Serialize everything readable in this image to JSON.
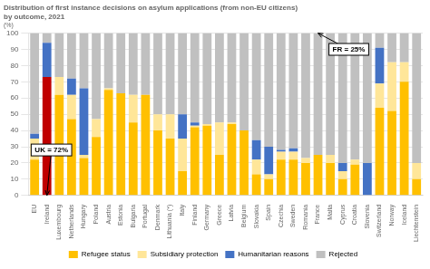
{
  "chart_data": {
    "type": "bar",
    "title": [
      "Distribution of first instance decisions on asylum applications (from non-EU citizens)",
      "by outcome, 2021"
    ],
    "subtitle": "(%)",
    "categories": [
      "EU",
      "Ireland",
      "Luxembourg",
      "Netherlands",
      "Hungary",
      "Poland",
      "Austria",
      "Estonia",
      "Bulgaria",
      "Portugal",
      "Denmark",
      "Lithuania (*)",
      "Italy",
      "Finland",
      "Germany",
      "Greece",
      "Latvia",
      "Belgium",
      "Slovakia",
      "Spain",
      "Czechia",
      "Sweden",
      "Romania",
      "France",
      "Malta",
      "Cyprus",
      "Croatia",
      "Slovenia",
      "Switzerland",
      "Norway",
      "Iceland",
      "Liechtenstein"
    ],
    "series": [
      {
        "name": "Refugee status",
        "color": "#FFC000",
        "colors": [
          "#FFC000",
          "#C00000",
          "#FFC000",
          "#FFC000",
          "#FFC000",
          "#FFC000",
          "#FFC000",
          "#FFC000",
          "#FFC000",
          "#FFC000",
          "#FFC000",
          "#FFC000",
          "#FFC000",
          "#FFC000",
          "#FFC000",
          "#FFC000",
          "#FFC000",
          "#FFC000",
          "#FFC000",
          "#FFC000",
          "#FFC000",
          "#FFC000",
          "#FFC000",
          "#FFC000",
          "#FFC000",
          "#FFC000",
          "#FFC000",
          "#FFC000",
          "#FFC000",
          "#FFC000",
          "#FFC000",
          "#FFC000"
        ],
        "values": [
          22,
          73,
          62,
          47,
          23,
          36,
          65,
          63,
          45,
          62,
          40,
          35,
          15,
          42,
          43,
          25,
          44,
          40,
          13,
          10,
          22,
          22,
          20,
          25,
          20,
          10,
          19,
          0,
          54,
          52,
          70,
          10
        ]
      },
      {
        "name": "Subsidiary protection",
        "color": "#FFE699",
        "values": [
          13,
          0,
          11,
          15,
          2,
          11,
          1,
          0,
          17,
          0,
          10,
          15,
          20,
          1,
          1,
          20,
          1,
          0,
          9,
          3,
          5,
          5,
          3,
          0,
          5,
          5,
          3,
          0,
          15,
          30,
          12,
          10
        ]
      },
      {
        "name": "Humanitarian reasons",
        "color": "#4472C4",
        "values": [
          3,
          21,
          0,
          10,
          41,
          0,
          0,
          0,
          0,
          0,
          0,
          0,
          15,
          2,
          0,
          0,
          0,
          0,
          12,
          17,
          1,
          2,
          0,
          0,
          0,
          5,
          0,
          20,
          22,
          0,
          0,
          0
        ]
      },
      {
        "name": "Rejected",
        "color": "#C0C0C0",
        "values": [
          62,
          6,
          27,
          28,
          34,
          53,
          34,
          37,
          38,
          38,
          50,
          50,
          50,
          55,
          56,
          55,
          55,
          60,
          66,
          70,
          72,
          71,
          77,
          75,
          75,
          80,
          78,
          80,
          9,
          18,
          18,
          80
        ]
      }
    ],
    "stacked": true,
    "ylim": [
      0,
      100
    ],
    "yticks": [
      0,
      10,
      20,
      30,
      40,
      50,
      60,
      70,
      80,
      90,
      100
    ],
    "grid": true,
    "legend": "bottom",
    "annotations": [
      {
        "text": "UK = 72%",
        "category": "Ireland"
      },
      {
        "text": "FR = 25%",
        "category": "France"
      }
    ]
  }
}
